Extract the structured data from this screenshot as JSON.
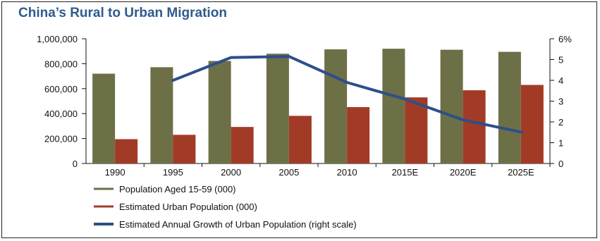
{
  "chart_data": {
    "type": "bar",
    "title": "China’s Rural to Urban Migration",
    "categories": [
      "1990",
      "1995",
      "2000",
      "2005",
      "2010",
      "2015E",
      "2020E",
      "2025E"
    ],
    "series": [
      {
        "name": "Population Aged 15-59 (000)",
        "kind": "bar",
        "axis": "left",
        "color": "#6d6f47",
        "values": [
          720000,
          772000,
          822000,
          880000,
          915000,
          920000,
          912000,
          895000
        ]
      },
      {
        "name": "Estimated Urban Population (000)",
        "kind": "bar",
        "axis": "left",
        "color": "#a23b26",
        "values": [
          195000,
          230000,
          293000,
          382000,
          452000,
          530000,
          587000,
          630000
        ]
      },
      {
        "name": "Estimated Annual Growth of Urban Population (right scale)",
        "kind": "line",
        "axis": "right",
        "color": "#2d4f8a",
        "values": [
          null,
          4.0,
          5.1,
          5.15,
          3.9,
          3.1,
          2.1,
          1.5
        ]
      }
    ],
    "left_axis": {
      "ylim": [
        0,
        1000000
      ],
      "ticks": [
        "0",
        "200,000",
        "400,000",
        "600,000",
        "800,000",
        "1,000,000"
      ]
    },
    "right_axis": {
      "ylim": [
        0,
        6
      ],
      "ticks": [
        "0",
        "1",
        "2",
        "3",
        "4",
        "5",
        "6%"
      ]
    },
    "grid": false,
    "legend": "bottom-left"
  }
}
